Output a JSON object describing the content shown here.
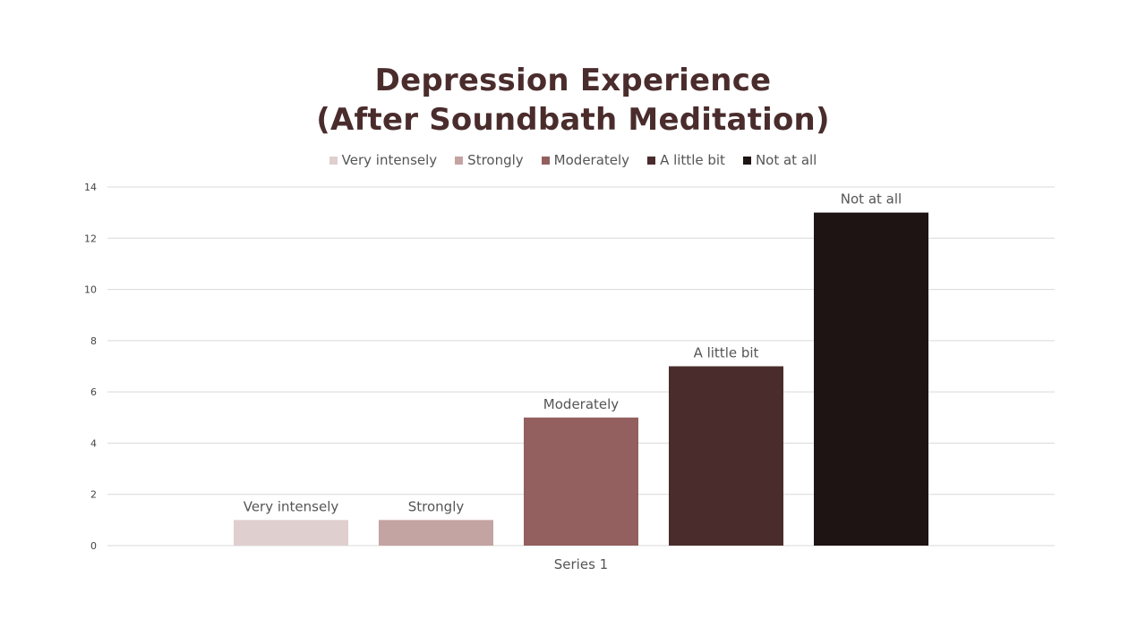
{
  "chart_data": {
    "type": "bar",
    "title_lines": [
      "Depression Experience",
      "(After Soundbath Meditation)"
    ],
    "categories": [
      "Series 1"
    ],
    "series": [
      {
        "name": "Very intensely",
        "values": [
          1
        ],
        "color": "#e0cfcf"
      },
      {
        "name": "Strongly",
        "values": [
          1
        ],
        "color": "#c4a3a3"
      },
      {
        "name": "Moderately",
        "values": [
          5
        ],
        "color": "#935f5f"
      },
      {
        "name": "A little bit",
        "values": [
          7
        ],
        "color": "#4a2c2c"
      },
      {
        "name": "Not at all",
        "values": [
          13
        ],
        "color": "#1e1414"
      }
    ],
    "yticks": [
      0,
      2,
      4,
      6,
      8,
      10,
      12,
      14
    ],
    "ylim": [
      0,
      14
    ],
    "grid": true,
    "legend_position": "top",
    "data_labels": "series name above each bar"
  }
}
